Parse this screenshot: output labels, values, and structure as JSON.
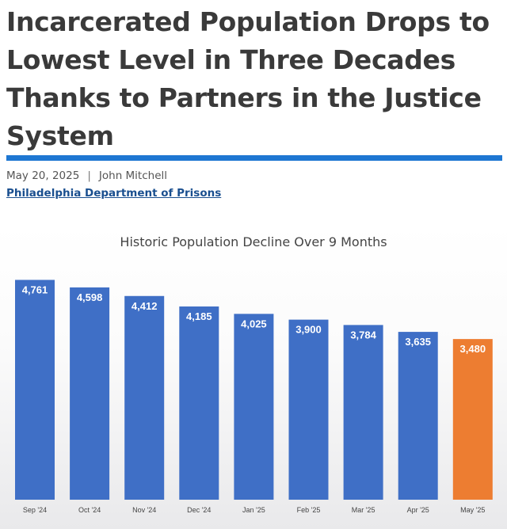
{
  "article": {
    "headline": "Incarcerated Population Drops to Lowest Level in Three Decades Thanks to Partners in the Justice System",
    "date": "May 20, 2025",
    "separator": "|",
    "author": "John Mitchell",
    "department": "Philadelphia Department of Prisons"
  },
  "colors": {
    "accent_rule": "#1e77d2",
    "bar_default": "#3f6fc6",
    "bar_highlight": "#ed7d31"
  },
  "chart_data": {
    "type": "bar",
    "title": "Historic Population Decline Over 9 Months",
    "xlabel": "",
    "ylabel": "",
    "categories": [
      "Sep '24",
      "Oct '24",
      "Nov '24",
      "Dec '24",
      "Jan '25",
      "Feb '25",
      "Mar '25",
      "Apr '25",
      "May '25"
    ],
    "values": [
      4761,
      4598,
      4412,
      4185,
      4025,
      3900,
      3784,
      3635,
      3480
    ],
    "value_labels": [
      "4,761",
      "4,598",
      "4,412",
      "4,185",
      "4,025",
      "3,900",
      "3,784",
      "3,635",
      "3,480"
    ],
    "highlight_index": 8,
    "grid": false,
    "legend": "none"
  }
}
